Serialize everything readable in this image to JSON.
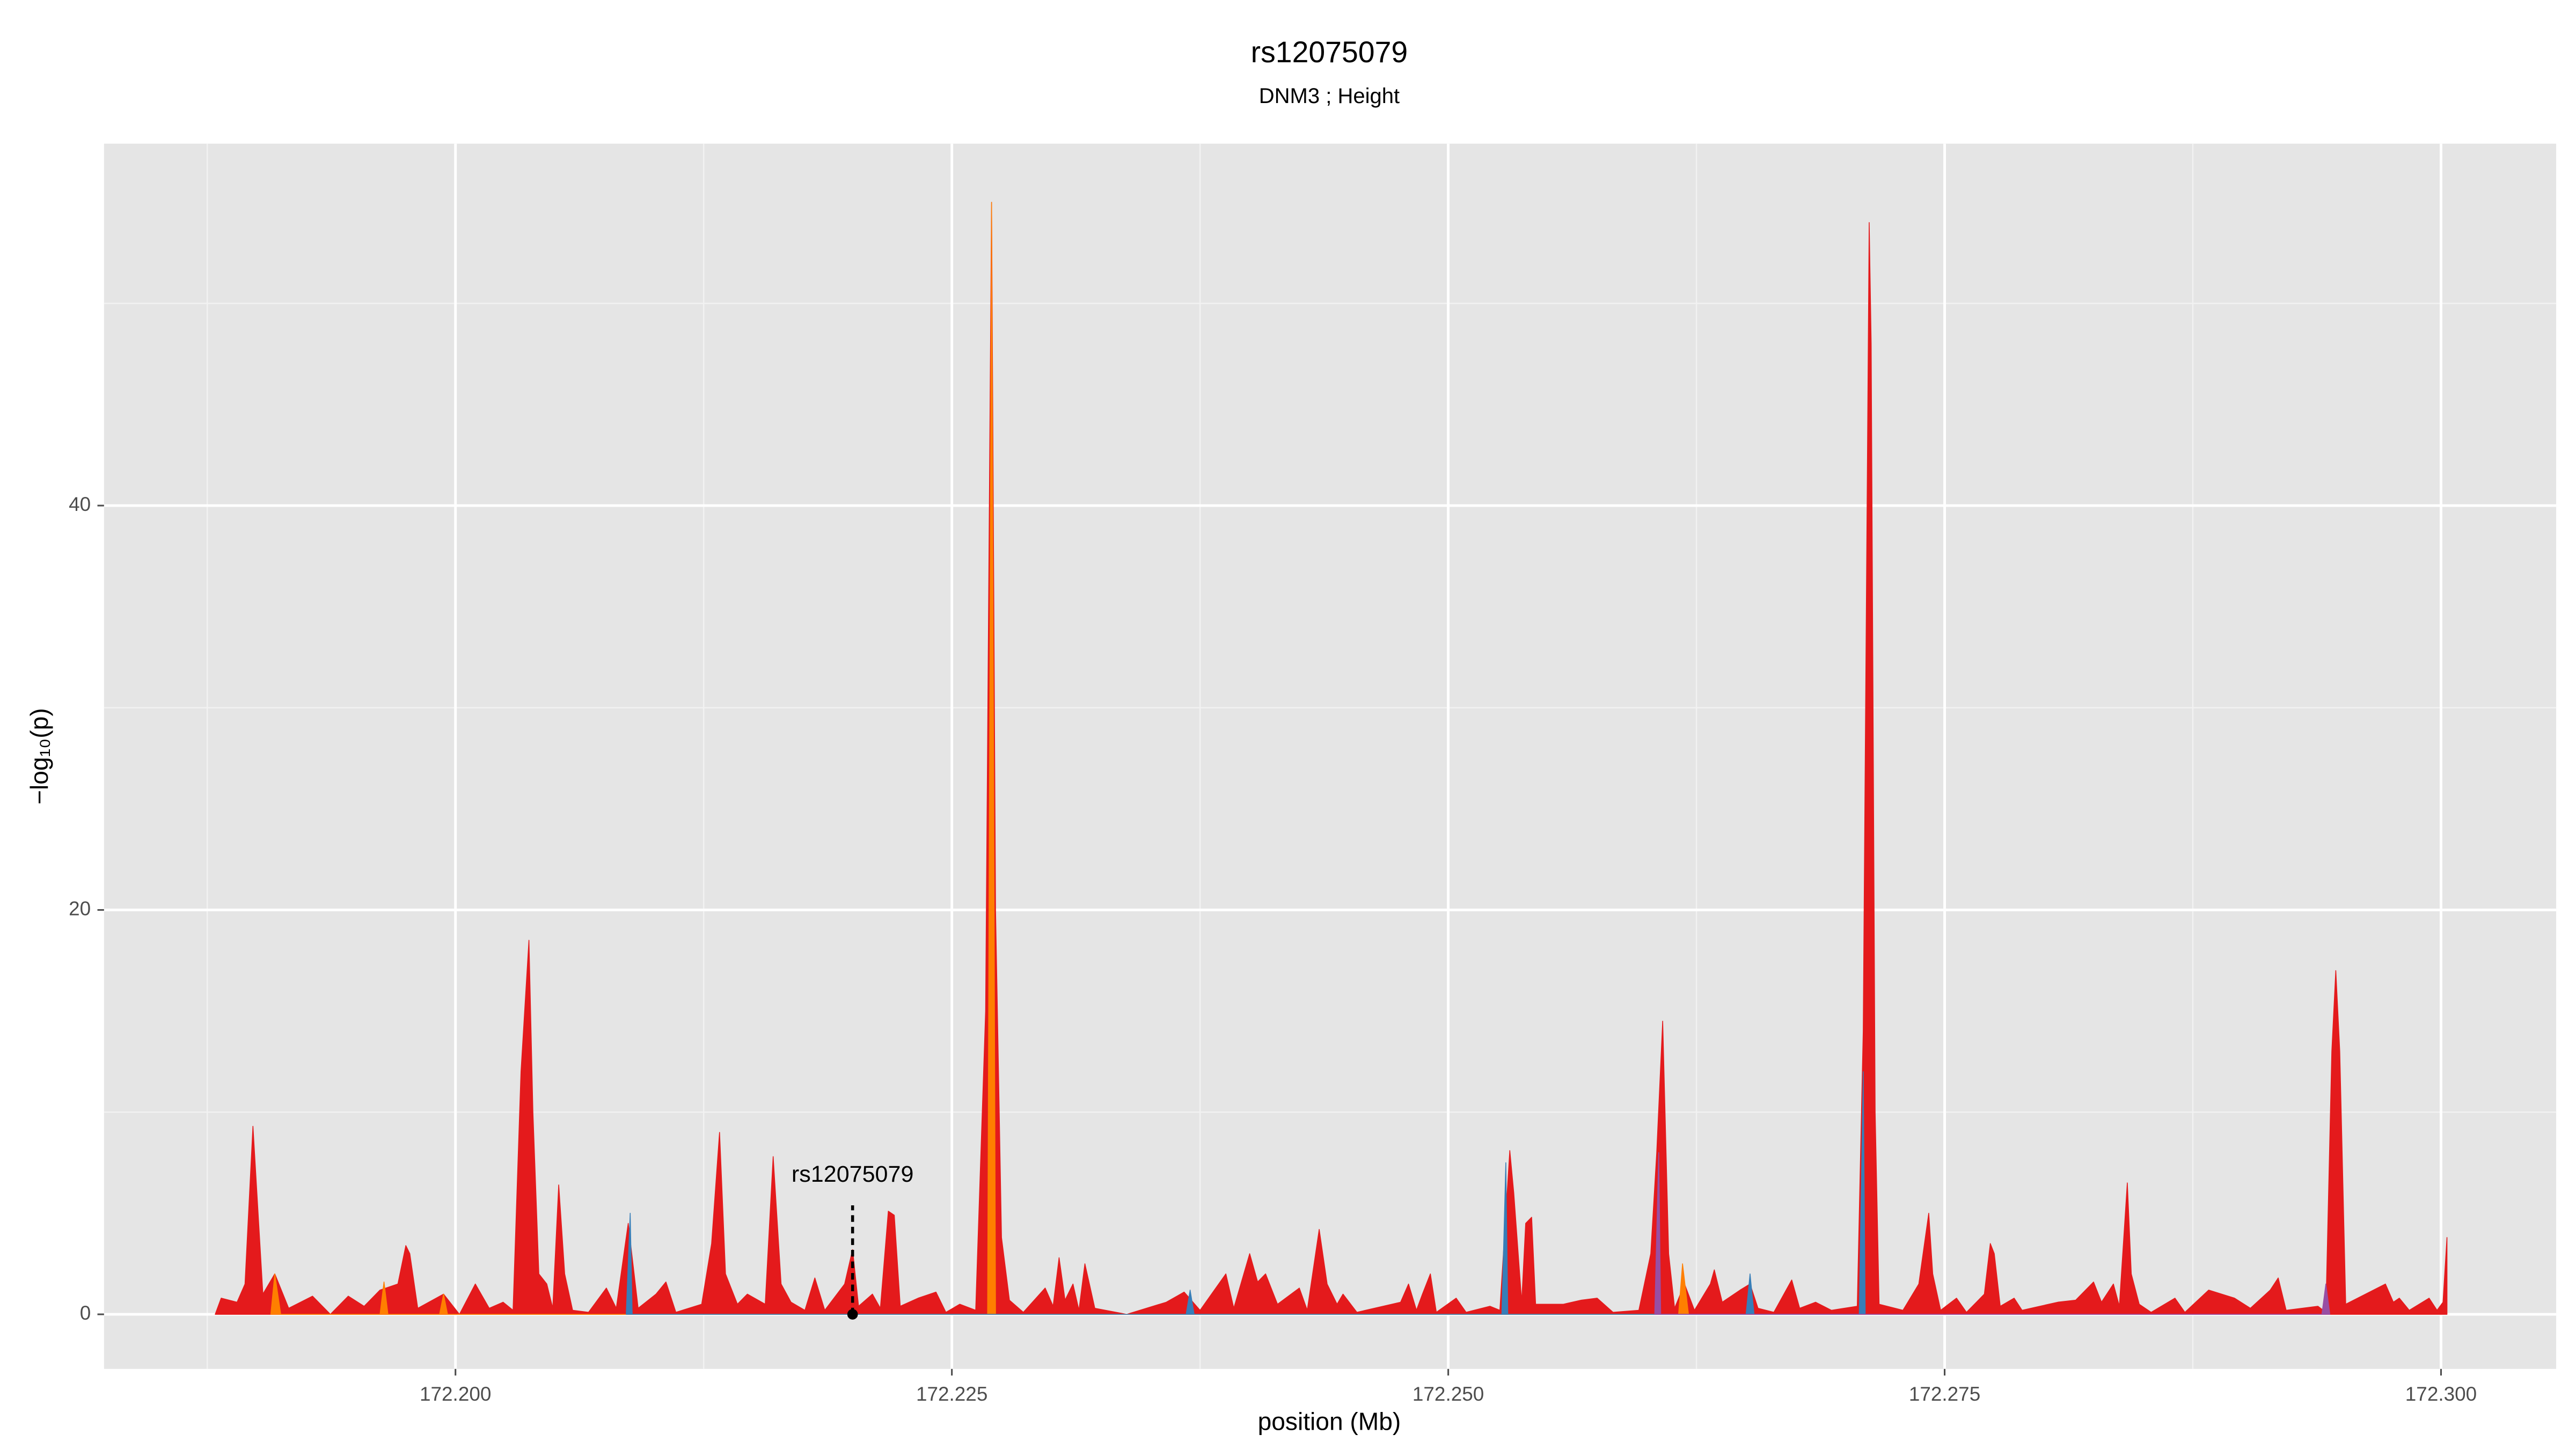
{
  "chart_data": {
    "type": "area",
    "title": "rs12075079",
    "subtitle": "DNM3 ; Height",
    "xlabel": "position (Mb)",
    "ylabel": "−log₁₀(p)",
    "xlim": [
      172.1823,
      172.3058
    ],
    "ylim": [
      -2.7,
      57.9
    ],
    "xticks": [
      {
        "value": 172.2,
        "label": "172.200"
      },
      {
        "value": 172.225,
        "label": "172.225"
      },
      {
        "value": 172.25,
        "label": "172.250"
      },
      {
        "value": 172.275,
        "label": "172.275"
      },
      {
        "value": 172.3,
        "label": "172.300"
      }
    ],
    "yticks": [
      0,
      20,
      40
    ],
    "x_minor_grid": [
      172.1875,
      172.2125,
      172.2375,
      172.2625,
      172.2875
    ],
    "y_minor_grid": [
      10,
      30,
      50
    ],
    "grid": true,
    "background": "#e5e5e5",
    "annotation": {
      "text": "rs12075079",
      "x": 172.22,
      "y": 0
    },
    "series": [
      {
        "color": "#e41a1c",
        "x": [
          172.1879,
          172.1882,
          172.189,
          172.1894,
          172.1898,
          172.1903,
          172.1909,
          172.1916,
          172.1928,
          172.1937,
          172.1946,
          172.1954,
          172.1962,
          172.1971,
          172.1975,
          172.1977,
          172.1981,
          172.1994,
          172.2002,
          172.201,
          172.2017,
          172.2024,
          172.2029,
          172.2033,
          172.2037,
          172.2039,
          172.2042,
          172.2046,
          172.2049,
          172.2052,
          172.2055,
          172.2059,
          172.2067,
          172.2076,
          172.2081,
          172.2087,
          172.2092,
          172.2101,
          172.2106,
          172.2111,
          172.2124,
          172.2129,
          172.2133,
          172.2136,
          172.2142,
          172.2147,
          172.2156,
          172.216,
          172.2164,
          172.2169,
          172.2176,
          172.2181,
          172.2186,
          172.2196,
          172.22,
          172.2203,
          172.221,
          172.2214,
          172.2218,
          172.2221,
          172.2224,
          172.2233,
          172.2242,
          172.2247,
          172.2254,
          172.2262,
          172.2267,
          172.227,
          172.2272,
          172.2275,
          172.2279,
          172.2286,
          172.2297,
          172.2301,
          172.2304,
          172.2307,
          172.2311,
          172.2314,
          172.2317,
          172.2322,
          172.2338,
          172.2358,
          172.2367,
          172.2375,
          172.2388,
          172.2392,
          172.24,
          172.2404,
          172.2408,
          172.2414,
          172.2425,
          172.2429,
          172.2435,
          172.2439,
          172.2444,
          172.2447,
          172.2454,
          172.2476,
          172.248,
          172.2484,
          172.2487,
          172.2491,
          172.2494,
          172.2504,
          172.2509,
          172.2521,
          172.2526,
          172.2531,
          172.2533,
          172.2537,
          172.2539,
          172.2542,
          172.2544,
          172.2558,
          172.2567,
          172.2575,
          172.2583,
          172.2596,
          172.2602,
          172.2605,
          172.2608,
          172.2611,
          172.2614,
          172.2619,
          172.2624,
          172.2632,
          172.2634,
          172.2638,
          172.2647,
          172.2652,
          172.2656,
          172.2664,
          172.2673,
          172.2677,
          172.2685,
          172.2693,
          172.2706,
          172.2709,
          172.2712,
          172.2713,
          172.2715,
          172.2717,
          172.2729,
          172.2737,
          172.2742,
          172.2744,
          172.2748,
          172.2756,
          172.2761,
          172.277,
          172.2773,
          172.2775,
          172.2778,
          172.2785,
          172.2789,
          172.2807,
          172.2816,
          172.2825,
          172.2829,
          172.2835,
          172.2838,
          172.2842,
          172.2844,
          172.2848,
          172.2854,
          172.2866,
          172.2871,
          172.2883,
          172.2896,
          172.2904,
          172.2914,
          172.2918,
          172.2922,
          172.2938,
          172.2942,
          172.2945,
          172.2947,
          172.2949,
          172.2952,
          172.2968,
          172.2972,
          172.2976,
          172.2979,
          172.2984,
          172.2994,
          172.2998,
          172.3001,
          172.3003
        ],
        "values": [
          0,
          0.8,
          0.6,
          1.5,
          9.3,
          1,
          2,
          0.3,
          0.9,
          0,
          0.9,
          0.4,
          1.2,
          1.5,
          3.4,
          3,
          0.3,
          1,
          0,
          1.5,
          0.3,
          0.6,
          0.2,
          12,
          18.5,
          10,
          2,
          1.5,
          0.3,
          6.4,
          2,
          0.2,
          0.1,
          1.3,
          0.3,
          4.5,
          0.3,
          1,
          1.6,
          0.1,
          0.5,
          3.5,
          9,
          2,
          0.5,
          1,
          0.5,
          7.8,
          1.5,
          0.6,
          0.2,
          1.8,
          0.2,
          1.5,
          3.2,
          0.4,
          1,
          0.3,
          5.1,
          4.9,
          0.4,
          0.8,
          1.1,
          0.1,
          0.5,
          0.2,
          15,
          55,
          20,
          3.8,
          0.7,
          0.1,
          1.3,
          0.4,
          2.8,
          0.7,
          1.5,
          0.2,
          2.5,
          0.3,
          0,
          0.6,
          1.1,
          0.2,
          2,
          0.3,
          3,
          1.6,
          2,
          0.5,
          1.3,
          0.2,
          4.2,
          1.5,
          0.5,
          1,
          0.1,
          0.6,
          1.5,
          0.2,
          1,
          2,
          0.1,
          0.8,
          0.1,
          0.4,
          0.2,
          8.1,
          6,
          0.6,
          4.5,
          4.8,
          0.5,
          0.5,
          0.7,
          0.8,
          0.1,
          0.2,
          3,
          8,
          14.5,
          3,
          0.3,
          1.5,
          0.2,
          1.5,
          2.2,
          0.6,
          1.2,
          1.5,
          0.3,
          0.1,
          1.7,
          0.3,
          0.6,
          0.2,
          0.4,
          14,
          54,
          48,
          10,
          0.5,
          0.2,
          1.5,
          5,
          2,
          0.2,
          0.8,
          0.1,
          1,
          3.5,
          3,
          0.4,
          0.8,
          0.2,
          0.6,
          0.7,
          1.6,
          0.6,
          1.5,
          0.4,
          6.5,
          2,
          0.5,
          0.1,
          0.8,
          0.1,
          1.2,
          0.8,
          0.3,
          1.2,
          1.8,
          0.2,
          0.4,
          0.1,
          13,
          17,
          13,
          0.5,
          1.3,
          1.5,
          0.6,
          0.8,
          0.2,
          0.8,
          0.2,
          0.6,
          3.8
        ]
      },
      {
        "color": "#ff7f00",
        "x": [
          172.1907,
          172.1909,
          172.1912,
          172.1962,
          172.1964,
          172.1966,
          172.1992,
          172.1994,
          172.1996,
          172.2268,
          172.227,
          172.2272,
          172.2616,
          172.2618,
          172.2621
        ],
        "values": [
          0,
          2,
          0,
          0,
          1.6,
          0,
          0,
          1,
          0,
          0,
          55,
          0,
          0,
          2.5,
          0
        ]
      },
      {
        "color": "#377eb8",
        "x": [
          172.2086,
          172.2088,
          172.2089,
          172.2368,
          172.237,
          172.2372,
          172.2527,
          172.2529,
          172.253,
          172.265,
          172.2652,
          172.2654,
          172.2707,
          172.2709,
          172.271
        ],
        "values": [
          0,
          5,
          0,
          0,
          1.2,
          0,
          0,
          7.5,
          0,
          0,
          2,
          0,
          0,
          12,
          0
        ]
      },
      {
        "color": "#984ea3",
        "x": [
          172.2604,
          172.2606,
          172.2607,
          172.294,
          172.2942,
          172.2944
        ],
        "values": [
          0,
          8,
          0,
          0,
          1.5,
          0
        ]
      }
    ]
  }
}
